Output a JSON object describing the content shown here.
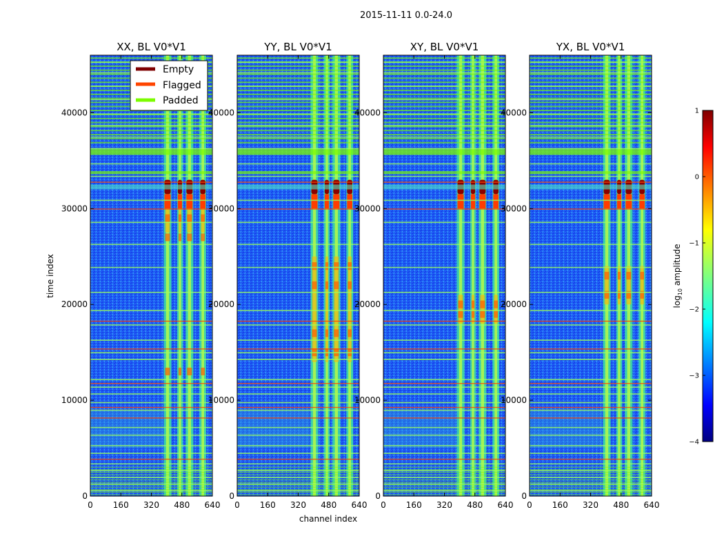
{
  "chart_data": {
    "type": "heatmap",
    "suptitle": "2015-11-11 0.0-24.0",
    "xlabel": "channel index",
    "ylabel": "time index",
    "xlim": [
      0,
      640
    ],
    "ylim": [
      0,
      46000
    ],
    "xticks": [
      0,
      160,
      320,
      480,
      640
    ],
    "yticks": [
      0,
      10000,
      20000,
      30000,
      40000
    ],
    "panels": [
      {
        "title": "XX, BL V0*V1",
        "hot_rows": [
          27000,
          29000,
          13000
        ],
        "extra_band": [
          27500,
          30000
        ]
      },
      {
        "title": "YY, BL V0*V1",
        "hot_rows": [
          15000,
          17000,
          22000,
          24000
        ],
        "extra_band": [
          14000,
          25000
        ]
      },
      {
        "title": "XY, BL V0*V1",
        "hot_rows": [
          19000,
          20000
        ],
        "extra_band": [
          18000,
          21000
        ]
      },
      {
        "title": "YX, BL V0*V1",
        "hot_rows": [
          21000,
          23000
        ],
        "extra_band": [
          20000,
          24000
        ]
      }
    ],
    "rfi_channels": [
      405,
      470,
      520,
      590
    ],
    "rfi_widths": [
      40,
      30,
      40,
      35
    ],
    "burst_time_range": [
      31500,
      33000
    ],
    "legend": [
      {
        "label": "Empty",
        "color": "#7f0000"
      },
      {
        "label": "Flagged",
        "color": "#ff4500"
      },
      {
        "label": "Padded",
        "color": "#7cfc00"
      }
    ],
    "colorbar": {
      "label": "log",
      "label_sub": "10",
      "label_suffix": " amplitude",
      "range": [
        -4,
        1
      ],
      "ticks": [
        {
          "value": 1,
          "label": "1"
        },
        {
          "value": 0,
          "label": "0"
        },
        {
          "value": -1,
          "label": "−1"
        },
        {
          "value": -2,
          "label": "−2"
        },
        {
          "value": -3,
          "label": "−3"
        },
        {
          "value": -4,
          "label": "−4"
        }
      ]
    },
    "flag_rows_padded": [
      500,
      1200,
      1900,
      2600,
      3300,
      4400,
      5200,
      6300,
      7100,
      8900,
      9700,
      10600,
      11300,
      12100,
      14200,
      14900,
      16200,
      17800,
      19300,
      21200,
      23800,
      26200,
      28500,
      30800,
      33300,
      34600,
      36200,
      37400,
      38600,
      39800,
      41300,
      42700,
      44100,
      45200
    ],
    "flag_rows_flagged": [
      3800,
      8100,
      9200,
      11700,
      15300,
      18200,
      29900,
      32700
    ]
  }
}
